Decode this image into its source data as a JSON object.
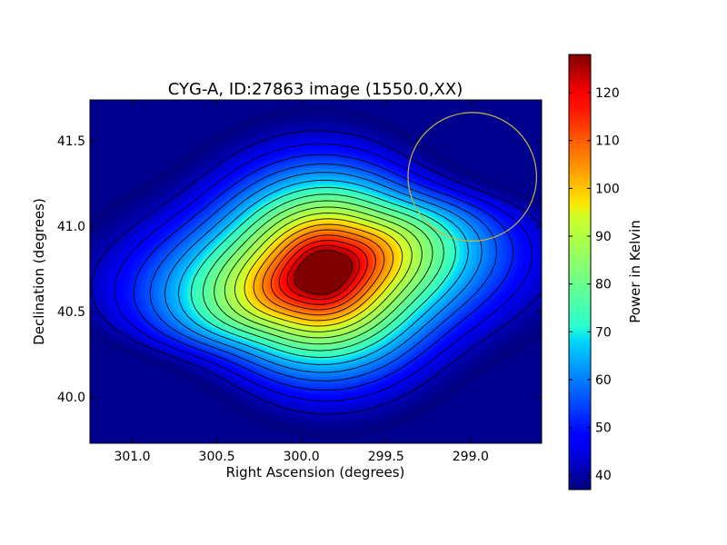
{
  "chart_data": {
    "type": "heatmap",
    "subtype": "contour",
    "title": "CYG-A, ID:27863 image (1550.0,XX)",
    "xlabel": "Right Ascension (degrees)",
    "ylabel": "Declination (degrees)",
    "xlim": [
      301.25,
      298.58
    ],
    "ylim": [
      39.73,
      41.74
    ],
    "x_inverted": true,
    "xticks": [
      {
        "value": 301.0,
        "label": "301.0"
      },
      {
        "value": 300.5,
        "label": "300.5"
      },
      {
        "value": 300.0,
        "label": "300.0"
      },
      {
        "value": 299.5,
        "label": "299.5"
      },
      {
        "value": 299.0,
        "label": "299.0"
      }
    ],
    "yticks": [
      {
        "value": 40.0,
        "label": "40.0"
      },
      {
        "value": 40.5,
        "label": "40.5"
      },
      {
        "value": 41.0,
        "label": "41.0"
      },
      {
        "value": 41.5,
        "label": "41.5"
      }
    ],
    "source": {
      "ra": 299.87,
      "dec": 40.73,
      "peak": 128
    },
    "background_level": 37,
    "contour_interval": 5,
    "circle_marker": {
      "ra": 298.99,
      "dec": 41.29,
      "radius_deg": 0.38,
      "color": "#c8b43a"
    },
    "colorbar": {
      "label": "Power in Kelvin",
      "colormap": "jet",
      "vmin": 37,
      "vmax": 128,
      "ticks": [
        {
          "value": 40,
          "label": "40"
        },
        {
          "value": 50,
          "label": "50"
        },
        {
          "value": 60,
          "label": "60"
        },
        {
          "value": 70,
          "label": "70"
        },
        {
          "value": 80,
          "label": "80"
        },
        {
          "value": 90,
          "label": "90"
        },
        {
          "value": 100,
          "label": "100"
        },
        {
          "value": 110,
          "label": "110"
        },
        {
          "value": 120,
          "label": "120"
        }
      ]
    }
  }
}
